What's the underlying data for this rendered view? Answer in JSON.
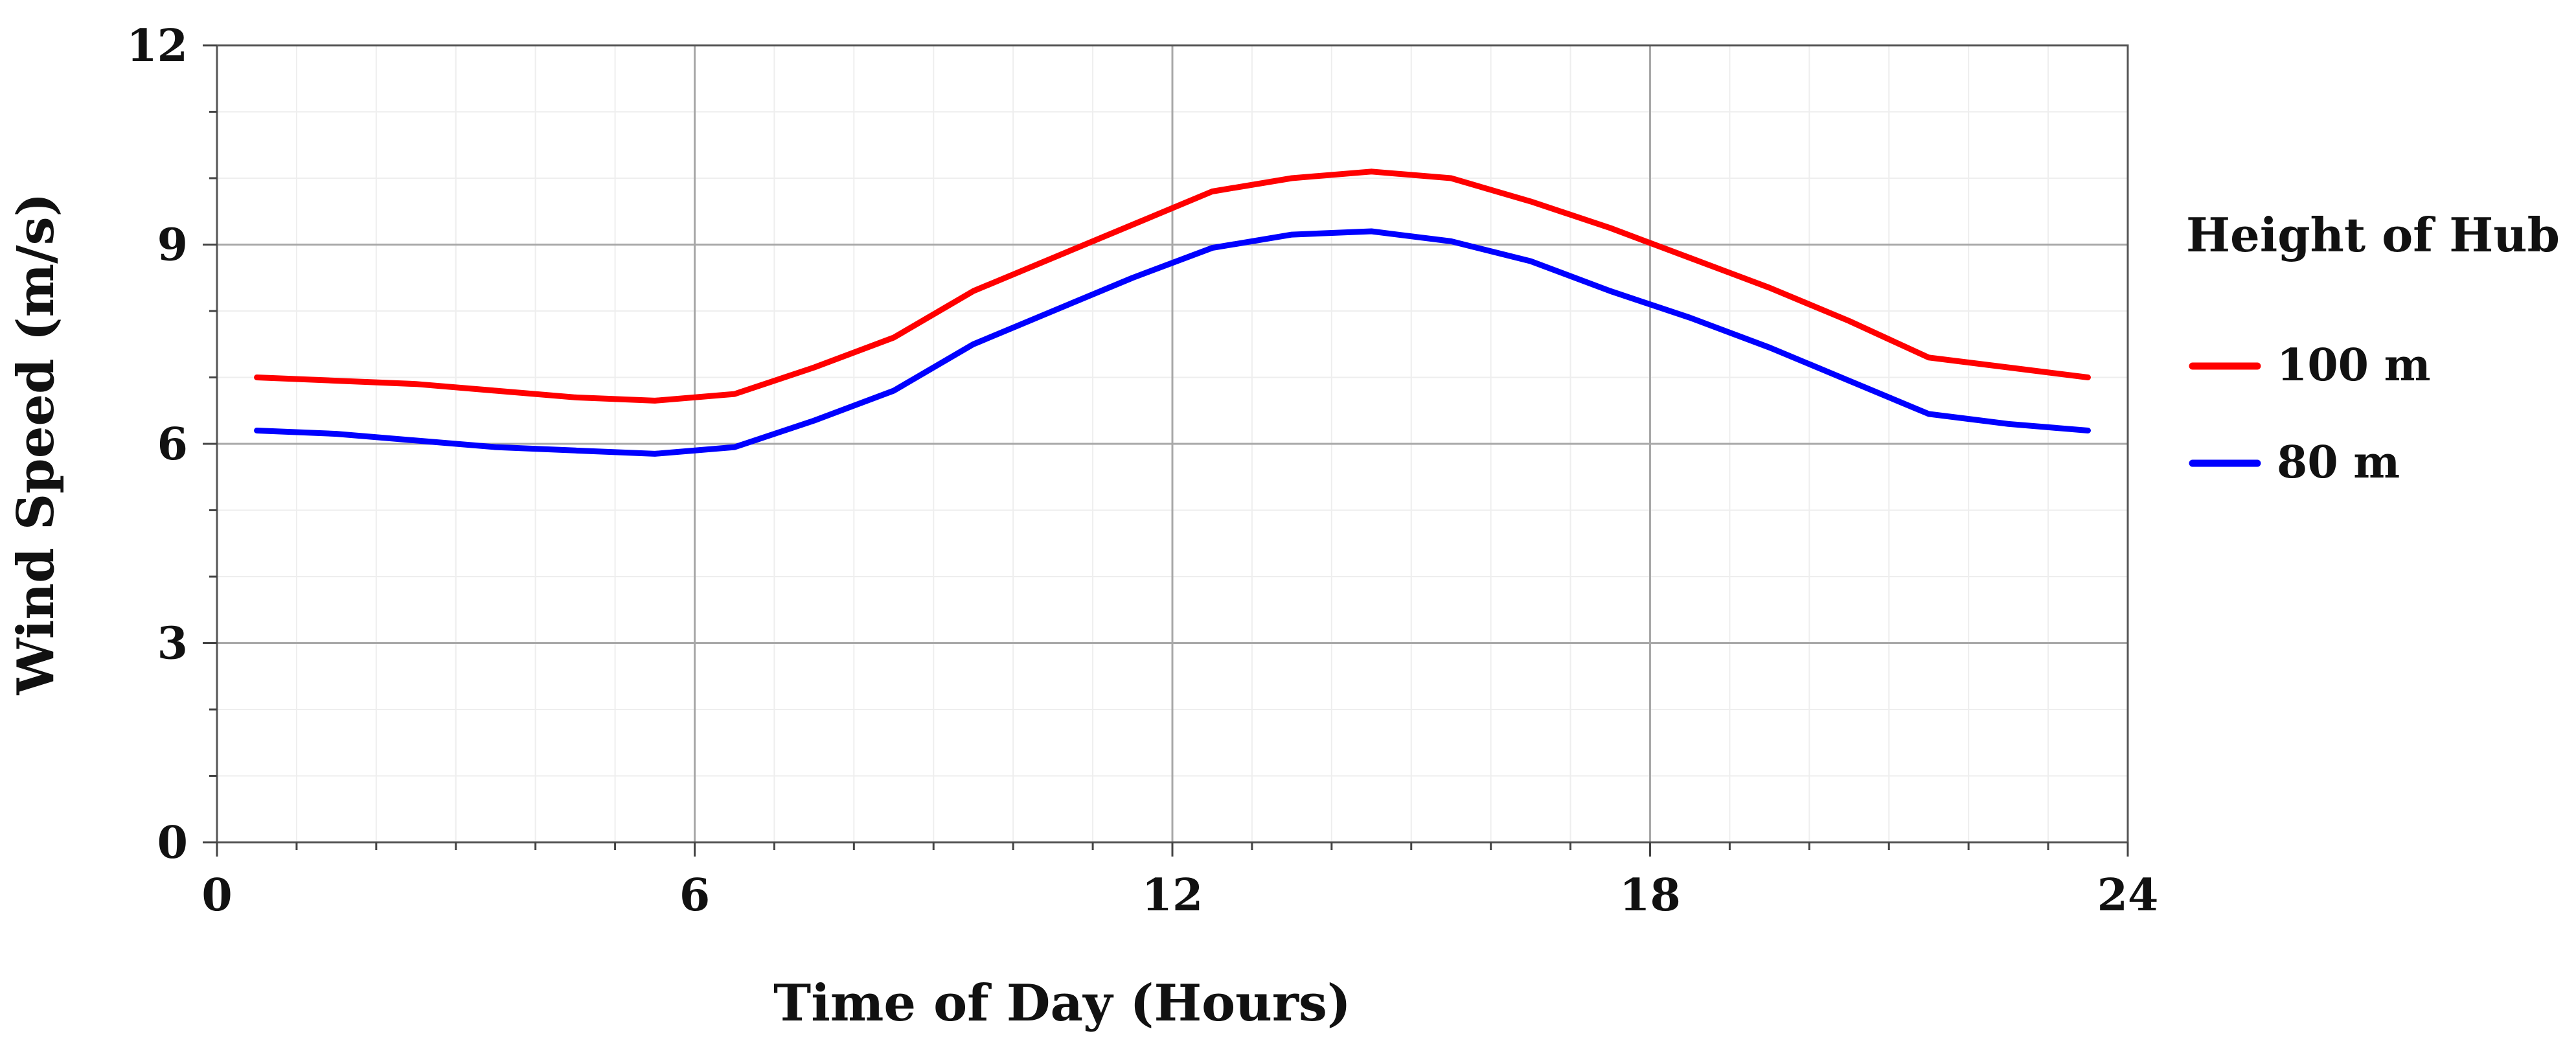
{
  "chart_data": {
    "type": "line",
    "title": "",
    "xlabel": "Time of Day (Hours)",
    "ylabel": "Wind Speed (m/s)",
    "xlim": [
      0,
      24
    ],
    "ylim": [
      0,
      12
    ],
    "xticks": [
      0,
      6,
      12,
      18,
      24
    ],
    "yticks": [
      0,
      3,
      6,
      9,
      12
    ],
    "x_tick_labels": [
      "0",
      "6",
      "12",
      "18",
      "24"
    ],
    "y_tick_labels": [
      "0",
      "3",
      "6",
      "9",
      "12"
    ],
    "grid": true,
    "legend": {
      "title": "Height of Hub",
      "placement": "right"
    },
    "x": [
      0.5,
      1.5,
      2.5,
      3.5,
      4.5,
      5.5,
      6.5,
      7.5,
      8.5,
      9.5,
      10.5,
      11.5,
      12.5,
      13.5,
      14.5,
      15.5,
      16.5,
      17.5,
      18.5,
      19.5,
      20.5,
      21.5,
      22.5,
      23.5
    ],
    "series": [
      {
        "name": "100 m",
        "color": "#ff0000",
        "values": [
          7.0,
          6.95,
          6.9,
          6.8,
          6.7,
          6.65,
          6.75,
          7.15,
          7.6,
          8.3,
          8.8,
          9.3,
          9.8,
          10.0,
          10.1,
          10.0,
          9.65,
          9.25,
          8.8,
          8.35,
          7.85,
          7.3,
          7.15,
          7.0
        ]
      },
      {
        "name": "80 m",
        "color": "#0000ff",
        "values": [
          6.2,
          6.15,
          6.05,
          5.95,
          5.9,
          5.85,
          5.95,
          6.35,
          6.8,
          7.5,
          8.0,
          8.5,
          8.95,
          9.15,
          9.2,
          9.05,
          8.75,
          8.3,
          7.9,
          7.45,
          6.95,
          6.45,
          6.3,
          6.2
        ]
      }
    ]
  }
}
